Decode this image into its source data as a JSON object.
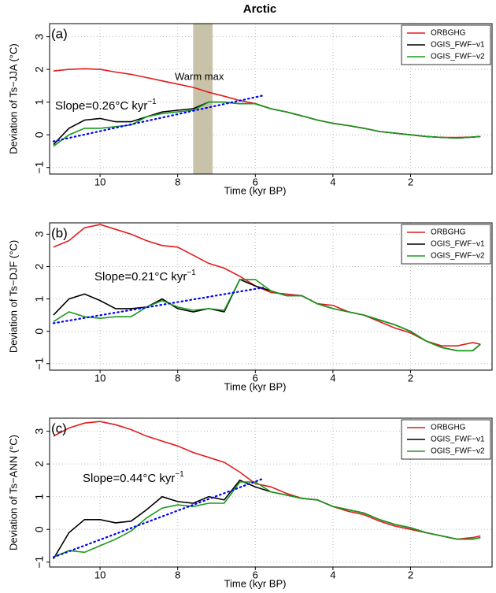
{
  "title": "Arctic",
  "chart_data": [
    {
      "type": "line",
      "panel_label": "(a)",
      "y_label": "Deviation of Ts−JJA (°C)",
      "x_label": "Time (kyr BP)",
      "xlim": [
        11.3,
        -0.1
      ],
      "xticks": [
        10,
        8,
        6,
        4,
        2
      ],
      "ylim": [
        -1.2,
        3.4
      ],
      "yticks": [
        {
          "value": -1,
          "label": "−1"
        },
        0,
        1,
        2,
        3
      ],
      "grid": true,
      "legend": "upper right",
      "x": [
        11.2,
        10.8,
        10.4,
        10.0,
        9.6,
        9.2,
        8.8,
        8.4,
        8.0,
        7.6,
        7.2,
        6.8,
        6.4,
        6.0,
        5.6,
        5.2,
        4.8,
        4.4,
        4.0,
        3.6,
        3.2,
        2.8,
        2.4,
        2.0,
        1.6,
        1.2,
        0.8,
        0.4,
        0.2
      ],
      "series": [
        {
          "name": "ORBGHG",
          "color": "#e41a1c",
          "values": [
            1.95,
            2.0,
            2.02,
            2.0,
            1.92,
            1.85,
            1.75,
            1.65,
            1.55,
            1.45,
            1.3,
            1.18,
            1.05,
            0.95,
            0.8,
            0.7,
            0.58,
            0.45,
            0.35,
            0.28,
            0.2,
            0.1,
            0.05,
            0.0,
            -0.05,
            -0.08,
            -0.08,
            -0.07,
            -0.05
          ]
        },
        {
          "name": "OGIS_FWF−v1",
          "color": "#000000",
          "values": [
            -0.3,
            0.2,
            0.45,
            0.5,
            0.4,
            0.4,
            0.55,
            0.7,
            0.75,
            0.8,
            1.0,
            1.0,
            0.95,
            0.95,
            0.8,
            0.7,
            0.58,
            0.45,
            0.35,
            0.28,
            0.2,
            0.1,
            0.05,
            0.0,
            -0.05,
            -0.08,
            -0.1,
            -0.07,
            -0.05
          ]
        },
        {
          "name": "OGIS_FWF−v2",
          "color": "#1a9a1a",
          "values": [
            -0.35,
            0.0,
            0.2,
            0.2,
            0.25,
            0.3,
            0.55,
            0.65,
            0.7,
            0.75,
            1.0,
            1.0,
            0.95,
            0.95,
            0.8,
            0.7,
            0.58,
            0.45,
            0.35,
            0.28,
            0.2,
            0.1,
            0.05,
            0.0,
            -0.05,
            -0.08,
            -0.1,
            -0.07,
            -0.05
          ]
        }
      ],
      "trend": {
        "color": "#0000ff",
        "x": [
          11.2,
          5.8
        ],
        "values": [
          -0.2,
          1.2
        ]
      },
      "annotation": "Slope=0.26°C kyr",
      "annotation_superscript": "−1",
      "shade": [
        7.6,
        7.1
      ],
      "shade_color": "#c8c2a8",
      "shade_label": "Warm max"
    },
    {
      "type": "line",
      "panel_label": "(b)",
      "y_label": "Deviation of Ts−DJF (°C)",
      "x_label": "Time (kyr BP)",
      "xlim": [
        11.3,
        -0.1
      ],
      "xticks": [
        10,
        8,
        6,
        4,
        2
      ],
      "ylim": [
        -1.2,
        3.35
      ],
      "yticks": [
        {
          "value": -1,
          "label": "−1"
        },
        0,
        1,
        2,
        3
      ],
      "grid": true,
      "legend": "upper right",
      "x": [
        11.2,
        10.8,
        10.4,
        10.0,
        9.6,
        9.2,
        8.8,
        8.4,
        8.0,
        7.6,
        7.2,
        6.8,
        6.4,
        6.0,
        5.6,
        5.2,
        4.8,
        4.4,
        4.0,
        3.6,
        3.2,
        2.8,
        2.4,
        2.0,
        1.6,
        1.2,
        0.8,
        0.4,
        0.2
      ],
      "series": [
        {
          "name": "ORBGHG",
          "color": "#e41a1c",
          "values": [
            2.6,
            2.8,
            3.2,
            3.3,
            3.15,
            3.0,
            2.8,
            2.65,
            2.6,
            2.35,
            2.1,
            1.95,
            1.7,
            1.4,
            1.2,
            1.15,
            1.1,
            0.85,
            0.8,
            0.6,
            0.5,
            0.3,
            0.1,
            -0.05,
            -0.3,
            -0.45,
            -0.45,
            -0.35,
            -0.4
          ]
        },
        {
          "name": "OGIS_FWF−v1",
          "color": "#000000",
          "values": [
            0.5,
            1.0,
            1.15,
            0.95,
            0.7,
            0.7,
            0.75,
            1.0,
            0.7,
            0.6,
            0.7,
            0.6,
            1.6,
            1.4,
            1.25,
            1.1,
            1.1,
            0.85,
            0.7,
            0.6,
            0.5,
            0.35,
            0.2,
            0.0,
            -0.3,
            -0.5,
            -0.6,
            -0.6,
            -0.4
          ]
        },
        {
          "name": "OGIS_FWF−v2",
          "color": "#1a9a1a",
          "values": [
            0.3,
            0.6,
            0.45,
            0.4,
            0.45,
            0.45,
            0.75,
            0.95,
            0.75,
            0.65,
            0.7,
            0.65,
            1.6,
            1.6,
            1.25,
            1.1,
            1.1,
            0.85,
            0.7,
            0.6,
            0.5,
            0.35,
            0.2,
            0.0,
            -0.3,
            -0.5,
            -0.6,
            -0.6,
            -0.4
          ]
        }
      ],
      "trend": {
        "color": "#0000ff",
        "x": [
          11.2,
          5.8
        ],
        "values": [
          0.25,
          1.35
        ]
      },
      "annotation": "Slope=0.21°C kyr",
      "annotation_superscript": "−1"
    },
    {
      "type": "line",
      "panel_label": "(c)",
      "y_label": "Deviation of Ts−ANN (°C)",
      "x_label": "Time (kyr BP)",
      "xlim": [
        11.3,
        -0.1
      ],
      "xticks": [
        10,
        8,
        6,
        4,
        2
      ],
      "ylim": [
        -1.15,
        3.4
      ],
      "yticks": [
        {
          "value": -1,
          "label": "−1"
        },
        0,
        1,
        2,
        3
      ],
      "grid": true,
      "legend": "upper right",
      "x": [
        11.2,
        10.8,
        10.4,
        10.0,
        9.6,
        9.2,
        8.8,
        8.4,
        8.0,
        7.6,
        7.2,
        6.8,
        6.4,
        6.0,
        5.6,
        5.2,
        4.8,
        4.4,
        4.0,
        3.6,
        3.2,
        2.8,
        2.4,
        2.0,
        1.6,
        1.2,
        0.8,
        0.4,
        0.2
      ],
      "series": [
        {
          "name": "ORBGHG",
          "color": "#e41a1c",
          "values": [
            2.85,
            3.1,
            3.25,
            3.3,
            3.2,
            3.05,
            2.85,
            2.7,
            2.55,
            2.35,
            2.2,
            2.05,
            1.75,
            1.4,
            1.3,
            1.1,
            0.95,
            0.9,
            0.7,
            0.55,
            0.45,
            0.25,
            0.1,
            0.0,
            -0.1,
            -0.2,
            -0.3,
            -0.25,
            -0.2
          ]
        },
        {
          "name": "OGIS_FWF−v1",
          "color": "#000000",
          "values": [
            -0.9,
            -0.1,
            0.3,
            0.3,
            0.2,
            0.25,
            0.6,
            1.0,
            0.85,
            0.8,
            1.0,
            0.9,
            1.5,
            1.3,
            1.15,
            1.05,
            0.95,
            0.9,
            0.7,
            0.6,
            0.5,
            0.3,
            0.15,
            0.05,
            -0.1,
            -0.2,
            -0.3,
            -0.3,
            -0.25
          ]
        },
        {
          "name": "OGIS_FWF−v2",
          "color": "#1a9a1a",
          "values": [
            -0.85,
            -0.65,
            -0.7,
            -0.5,
            -0.3,
            -0.05,
            0.35,
            0.65,
            0.75,
            0.7,
            0.8,
            0.8,
            1.45,
            1.45,
            1.15,
            1.05,
            0.95,
            0.9,
            0.7,
            0.6,
            0.5,
            0.3,
            0.15,
            0.05,
            -0.1,
            -0.2,
            -0.3,
            -0.3,
            -0.25
          ]
        }
      ],
      "trend": {
        "color": "#0000ff",
        "x": [
          11.2,
          5.8
        ],
        "values": [
          -0.85,
          1.55
        ]
      },
      "annotation": "Slope=0.44°C kyr",
      "annotation_superscript": "−1"
    }
  ]
}
